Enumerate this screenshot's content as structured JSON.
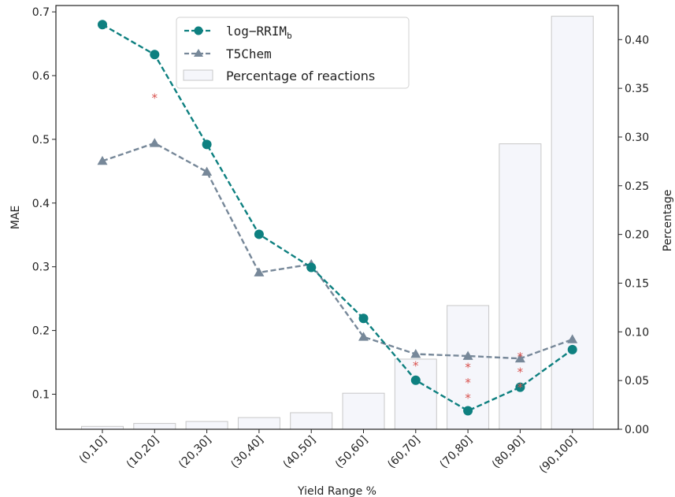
{
  "chart_data": {
    "type": "bar+line",
    "xlabel": "Yield Range %",
    "ylabel_left": "MAE",
    "ylabel_right": "Percentage",
    "categories": [
      "(0,10]",
      "(10,20]",
      "(20,30]",
      "(30,40]",
      "(40,50]",
      "(50,60]",
      "(60,70]",
      "(70,80]",
      "(80,90]",
      "(90,100]"
    ],
    "ylim_left": [
      0.045,
      0.71
    ],
    "yticks_left": [
      "0.1",
      "0.2",
      "0.3",
      "0.4",
      "0.5",
      "0.6",
      "0.7"
    ],
    "ylim_right": [
      0.0,
      0.435
    ],
    "yticks_right": [
      "0.00",
      "0.05",
      "0.10",
      "0.15",
      "0.20",
      "0.25",
      "0.30",
      "0.35",
      "0.40"
    ],
    "bars": {
      "name": "Percentage of reactions",
      "axis": "right",
      "color": "#f5f6fb",
      "edge": "#c8c8c8",
      "values": [
        0.003,
        0.006,
        0.008,
        0.012,
        0.017,
        0.037,
        0.072,
        0.127,
        0.293,
        0.424
      ]
    },
    "series": [
      {
        "name": "log−RRIM",
        "name_subscript": "b",
        "axis": "left",
        "color": "#0e8080",
        "marker": "circle",
        "values": [
          0.68,
          0.633,
          0.492,
          0.351,
          0.299,
          0.219,
          0.122,
          0.074,
          0.111,
          0.17
        ]
      },
      {
        "name": "T5Chem",
        "axis": "left",
        "color": "#778899",
        "marker": "triangle",
        "values": [
          0.466,
          0.494,
          0.449,
          0.291,
          0.304,
          0.19,
          0.163,
          0.16,
          0.156,
          0.186
        ]
      }
    ],
    "significance_markers": {
      "symbol": "*",
      "color": "#d9534f",
      "counts": [
        0,
        1,
        0,
        0,
        0,
        0,
        1,
        3,
        3,
        0
      ],
      "first_y": [
        0,
        0.566,
        0,
        0,
        0,
        0,
        0.146,
        0.143,
        0.16,
        0
      ],
      "step": 0.024
    },
    "legend_position": "upper-center"
  }
}
